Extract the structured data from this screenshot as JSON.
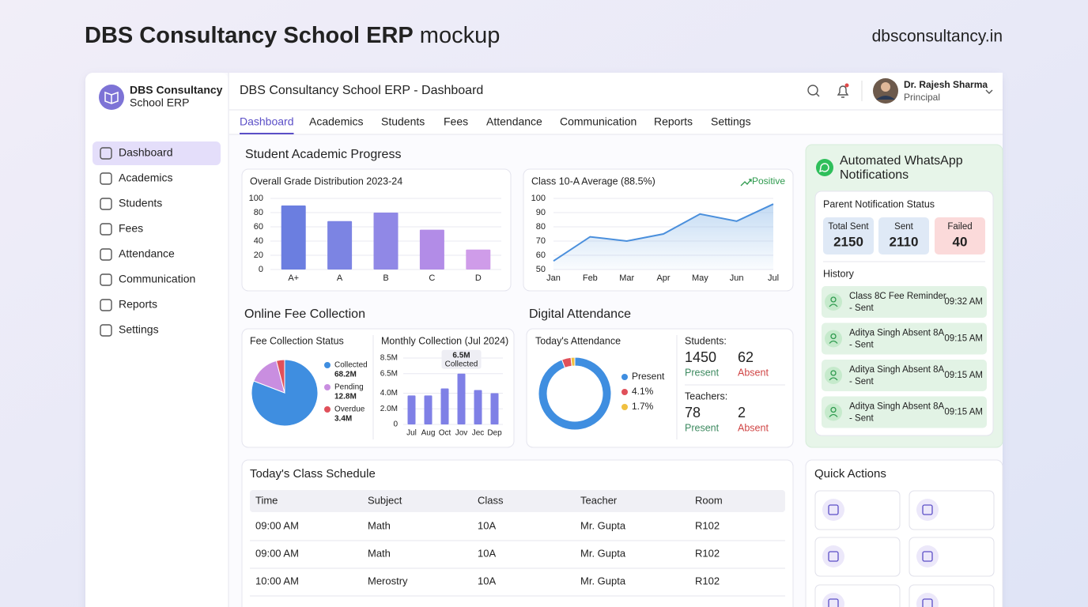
{
  "header": {
    "title_bold": "DBS Consultancy School ERP",
    "title_light": "mockup",
    "site": "dbsconsultancy.in"
  },
  "brand": {
    "name": "DBS Consultancy",
    "sub": "School ERP"
  },
  "nav": [
    "Dashboard",
    "Academics",
    "Students",
    "Fees",
    "Attendance",
    "Communication",
    "Reports",
    "Settings"
  ],
  "topbar": {
    "title": "DBS Consultancy School ERP - Dashboard",
    "user": "Dr. Rajesh Sharma",
    "role": "Principal"
  },
  "tabs": [
    "Dashboard",
    "Academics",
    "Students",
    "Fees",
    "Attendance",
    "Communication",
    "Reports",
    "Settings"
  ],
  "sections": {
    "academic": "Student Academic Progress",
    "fees": "Online Fee Collection",
    "attendance": "Digital Attendance"
  },
  "attendance_stats": {
    "groups": [
      {
        "label": "Students:",
        "present": 1450,
        "absent": 62
      },
      {
        "label": "Teachers:",
        "present": 78,
        "absent": 2
      }
    ],
    "present_label": "Present",
    "absent_label": "Absent"
  },
  "whatsapp": {
    "title_1": "Automated WhatsApp",
    "title_2": "Notifications",
    "status_title": "Parent Notification Status",
    "stats": [
      {
        "label": "Total Sent",
        "value": 2150
      },
      {
        "label": "Sent",
        "value": 2110
      },
      {
        "label": "Failed",
        "value": 40
      }
    ],
    "history_title": "History",
    "history": [
      {
        "title": "Class 8C Fee Reminder",
        "status": "- Sent",
        "time": "09:32 AM"
      },
      {
        "title": "Aditya Singh Absent 8A",
        "status": "- Sent",
        "time": "09:15 AM"
      },
      {
        "title": "Aditya Singh Absent 8A",
        "status": "- Sent",
        "time": "09:15 AM"
      },
      {
        "title": "Aditya Singh Absent 8A",
        "status": "- Sent",
        "time": "09:15 AM"
      }
    ]
  },
  "schedule": {
    "title": "Today's Class Schedule",
    "headers": [
      "Time",
      "Subject",
      "Class",
      "Teacher",
      "Room"
    ],
    "rows": [
      [
        "09:00 AM",
        "Math",
        "10A",
        "Mr. Gupta",
        "R102"
      ],
      [
        "09:00 AM",
        "Math",
        "10A",
        "Mr. Gupta",
        "R102"
      ],
      [
        "10:00 AM",
        "Merostry",
        "10A",
        "Mr. Gupta",
        "R102"
      ]
    ]
  },
  "quick_actions": {
    "title": "Quick Actions"
  },
  "chart_data": [
    {
      "type": "bar",
      "title": "Overall Grade Distribution 2023-24",
      "categories": [
        "A+",
        "A",
        "B",
        "C",
        "D"
      ],
      "values": [
        90,
        68,
        80,
        56,
        28
      ],
      "colors": [
        "#6b7ee0",
        "#7c84e3",
        "#9088e6",
        "#b28ce7",
        "#cf9ce9"
      ],
      "ylim": [
        0,
        100
      ],
      "yticks": [
        0,
        20,
        40,
        60,
        80,
        100
      ],
      "grid": true
    },
    {
      "type": "line",
      "title": "Class 10-A Average (88.5%)",
      "annotation": "Positive",
      "categories": [
        "Jan",
        "Feb",
        "Mar",
        "Apr",
        "May",
        "Jun",
        "Jul"
      ],
      "values": [
        56,
        73,
        70,
        75,
        89,
        84,
        96
      ],
      "color": "#4a8fdc",
      "ylim": [
        50,
        100
      ],
      "yticks": [
        50,
        60,
        70,
        80,
        90,
        100
      ],
      "grid": true
    },
    {
      "type": "pie",
      "title": "Fee Collection Status",
      "categories": [
        "Collected",
        "Pending",
        "Overdue"
      ],
      "values": [
        68.2,
        12.8,
        3.4
      ],
      "value_labels": [
        "68.2M",
        "12.8M",
        "3.4M"
      ],
      "colors": [
        "#3f8ee0",
        "#c98ee0",
        "#e0505a"
      ]
    },
    {
      "type": "bar",
      "title": "Monthly Collection (Jul 2024)",
      "categories": [
        "Jul",
        "Aug",
        "Oct",
        "Jov",
        "Jec",
        "Dep"
      ],
      "values": [
        3.7,
        3.7,
        4.6,
        6.5,
        4.4,
        4.0
      ],
      "color": "#7f80e6",
      "ylim": [
        0,
        8.5
      ],
      "yticks": [
        0,
        {
          "value": 2,
          "label": "2.0M"
        },
        {
          "value": 4,
          "label": "4.0M"
        },
        {
          "value": 6.5,
          "label": "6.5M"
        },
        {
          "value": 8.5,
          "label": "8.5M"
        }
      ],
      "annotation": {
        "label": "6.5M",
        "text": "Collected"
      },
      "grid": true
    },
    {
      "type": "donut",
      "title": "Today's Attendance",
      "categories": [
        "Present",
        "4.1%",
        "1.7%"
      ],
      "values": [
        94.2,
        4.1,
        1.7
      ],
      "colors": [
        "#3f8ee0",
        "#e0505a",
        "#f0c040"
      ]
    }
  ]
}
